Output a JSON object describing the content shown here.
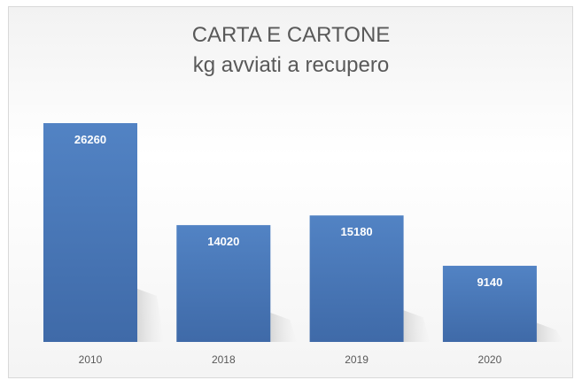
{
  "chart_data": {
    "type": "bar",
    "title": "CARTA E CARTONE",
    "subtitle": "kg avviati a recupero",
    "categories": [
      "2010",
      "2018",
      "2019",
      "2020"
    ],
    "values": [
      26260,
      14020,
      15180,
      9140
    ],
    "xlabel": "",
    "ylabel": "",
    "ylim": [
      0,
      26260
    ],
    "grid": false,
    "legend": "none",
    "bar_color": "#4a77b4",
    "label_color": "#ffffff"
  }
}
